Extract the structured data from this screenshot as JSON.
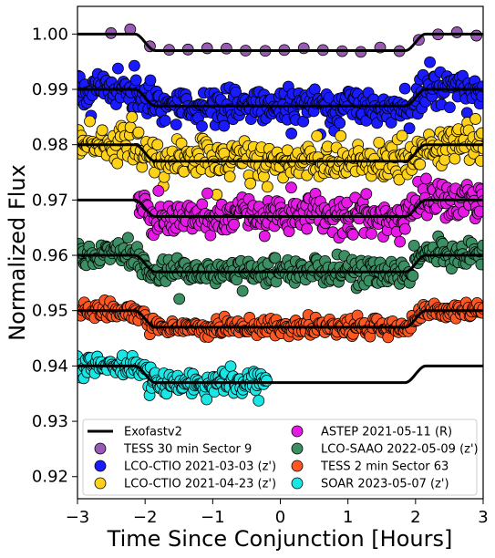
{
  "chart_data": {
    "type": "scatter",
    "xlabel": "Time Since Conjunction [Hours]",
    "ylabel": "Normalized Flux",
    "xlim": [
      -3,
      3
    ],
    "ylim": [
      0.916,
      1.005
    ],
    "x_ticks": [
      -3,
      -2,
      -1,
      0,
      1,
      2,
      3
    ],
    "x_tick_labels": [
      "−3",
      "−2",
      "−1",
      "0",
      "1",
      "2",
      "3"
    ],
    "y_ticks": [
      0.92,
      0.93,
      0.94,
      0.95,
      0.96,
      0.97,
      0.98,
      0.99,
      1.0
    ],
    "y_tick_labels": [
      "0.92",
      "0.93",
      "0.94",
      "0.95",
      "0.96",
      "0.97",
      "0.98",
      "0.99",
      "1.00"
    ],
    "grid": false,
    "legend_position": "bottom",
    "legend_columns": 2,
    "model": {
      "name": "Exofastv2",
      "color": "#000000",
      "depth": 0.003,
      "t_ingress_start": -2.15,
      "t_ingress_end": -1.85,
      "t_egress_start": 1.85,
      "t_egress_end": 2.15,
      "curves": [
        {
          "baseline": 1.0,
          "x_range": [
            -3,
            3
          ]
        },
        {
          "baseline": 0.99,
          "x_range": [
            -3,
            3
          ]
        },
        {
          "baseline": 0.98,
          "x_range": [
            -3,
            3
          ]
        },
        {
          "baseline": 0.97,
          "x_range": [
            -3,
            3
          ]
        },
        {
          "baseline": 0.96,
          "x_range": [
            -3,
            3
          ]
        },
        {
          "baseline": 0.95,
          "x_range": [
            -3,
            3
          ]
        },
        {
          "baseline": 0.94,
          "x_range": [
            -3,
            3
          ]
        }
      ]
    },
    "series": [
      {
        "name": "TESS 30 min Sector 9",
        "color": "#9b59b6",
        "baseline": 1.0,
        "scatter": 0.0003,
        "x_range": [
          -2.5,
          2.9
        ],
        "n": 20
      },
      {
        "name": "LCO-CTIO 2021-03-03 (z')",
        "color": "#1a1aff",
        "baseline": 0.99,
        "scatter": 0.0018,
        "x_range": [
          -3.0,
          3.0
        ],
        "n": 380
      },
      {
        "name": "LCO-CTIO 2021-04-23 (z')",
        "color": "#ffd21a",
        "baseline": 0.98,
        "scatter": 0.0018,
        "x_range": [
          -3.0,
          3.0
        ],
        "n": 360
      },
      {
        "name": "ASTEP 2021-05-11 (R)",
        "color": "#e619e6",
        "baseline": 0.97,
        "scatter": 0.0017,
        "x_range": [
          -2.1,
          3.0
        ],
        "n": 340
      },
      {
        "name": "LCO-SAAO 2022-05-09 (z')",
        "color": "#3b8f63",
        "baseline": 0.96,
        "scatter": 0.0011,
        "x_range": [
          -3.0,
          3.0
        ],
        "n": 360
      },
      {
        "name": "TESS 2 min Sector 63",
        "color": "#ff5722",
        "baseline": 0.95,
        "scatter": 0.0008,
        "x_range": [
          -3.0,
          3.0
        ],
        "n": 360
      },
      {
        "name": "SOAR 2023-05-07 (z')",
        "color": "#1ae6e6",
        "baseline": 0.94,
        "scatter": 0.0011,
        "x_range": [
          -3.0,
          -0.2
        ],
        "n": 190
      }
    ]
  }
}
